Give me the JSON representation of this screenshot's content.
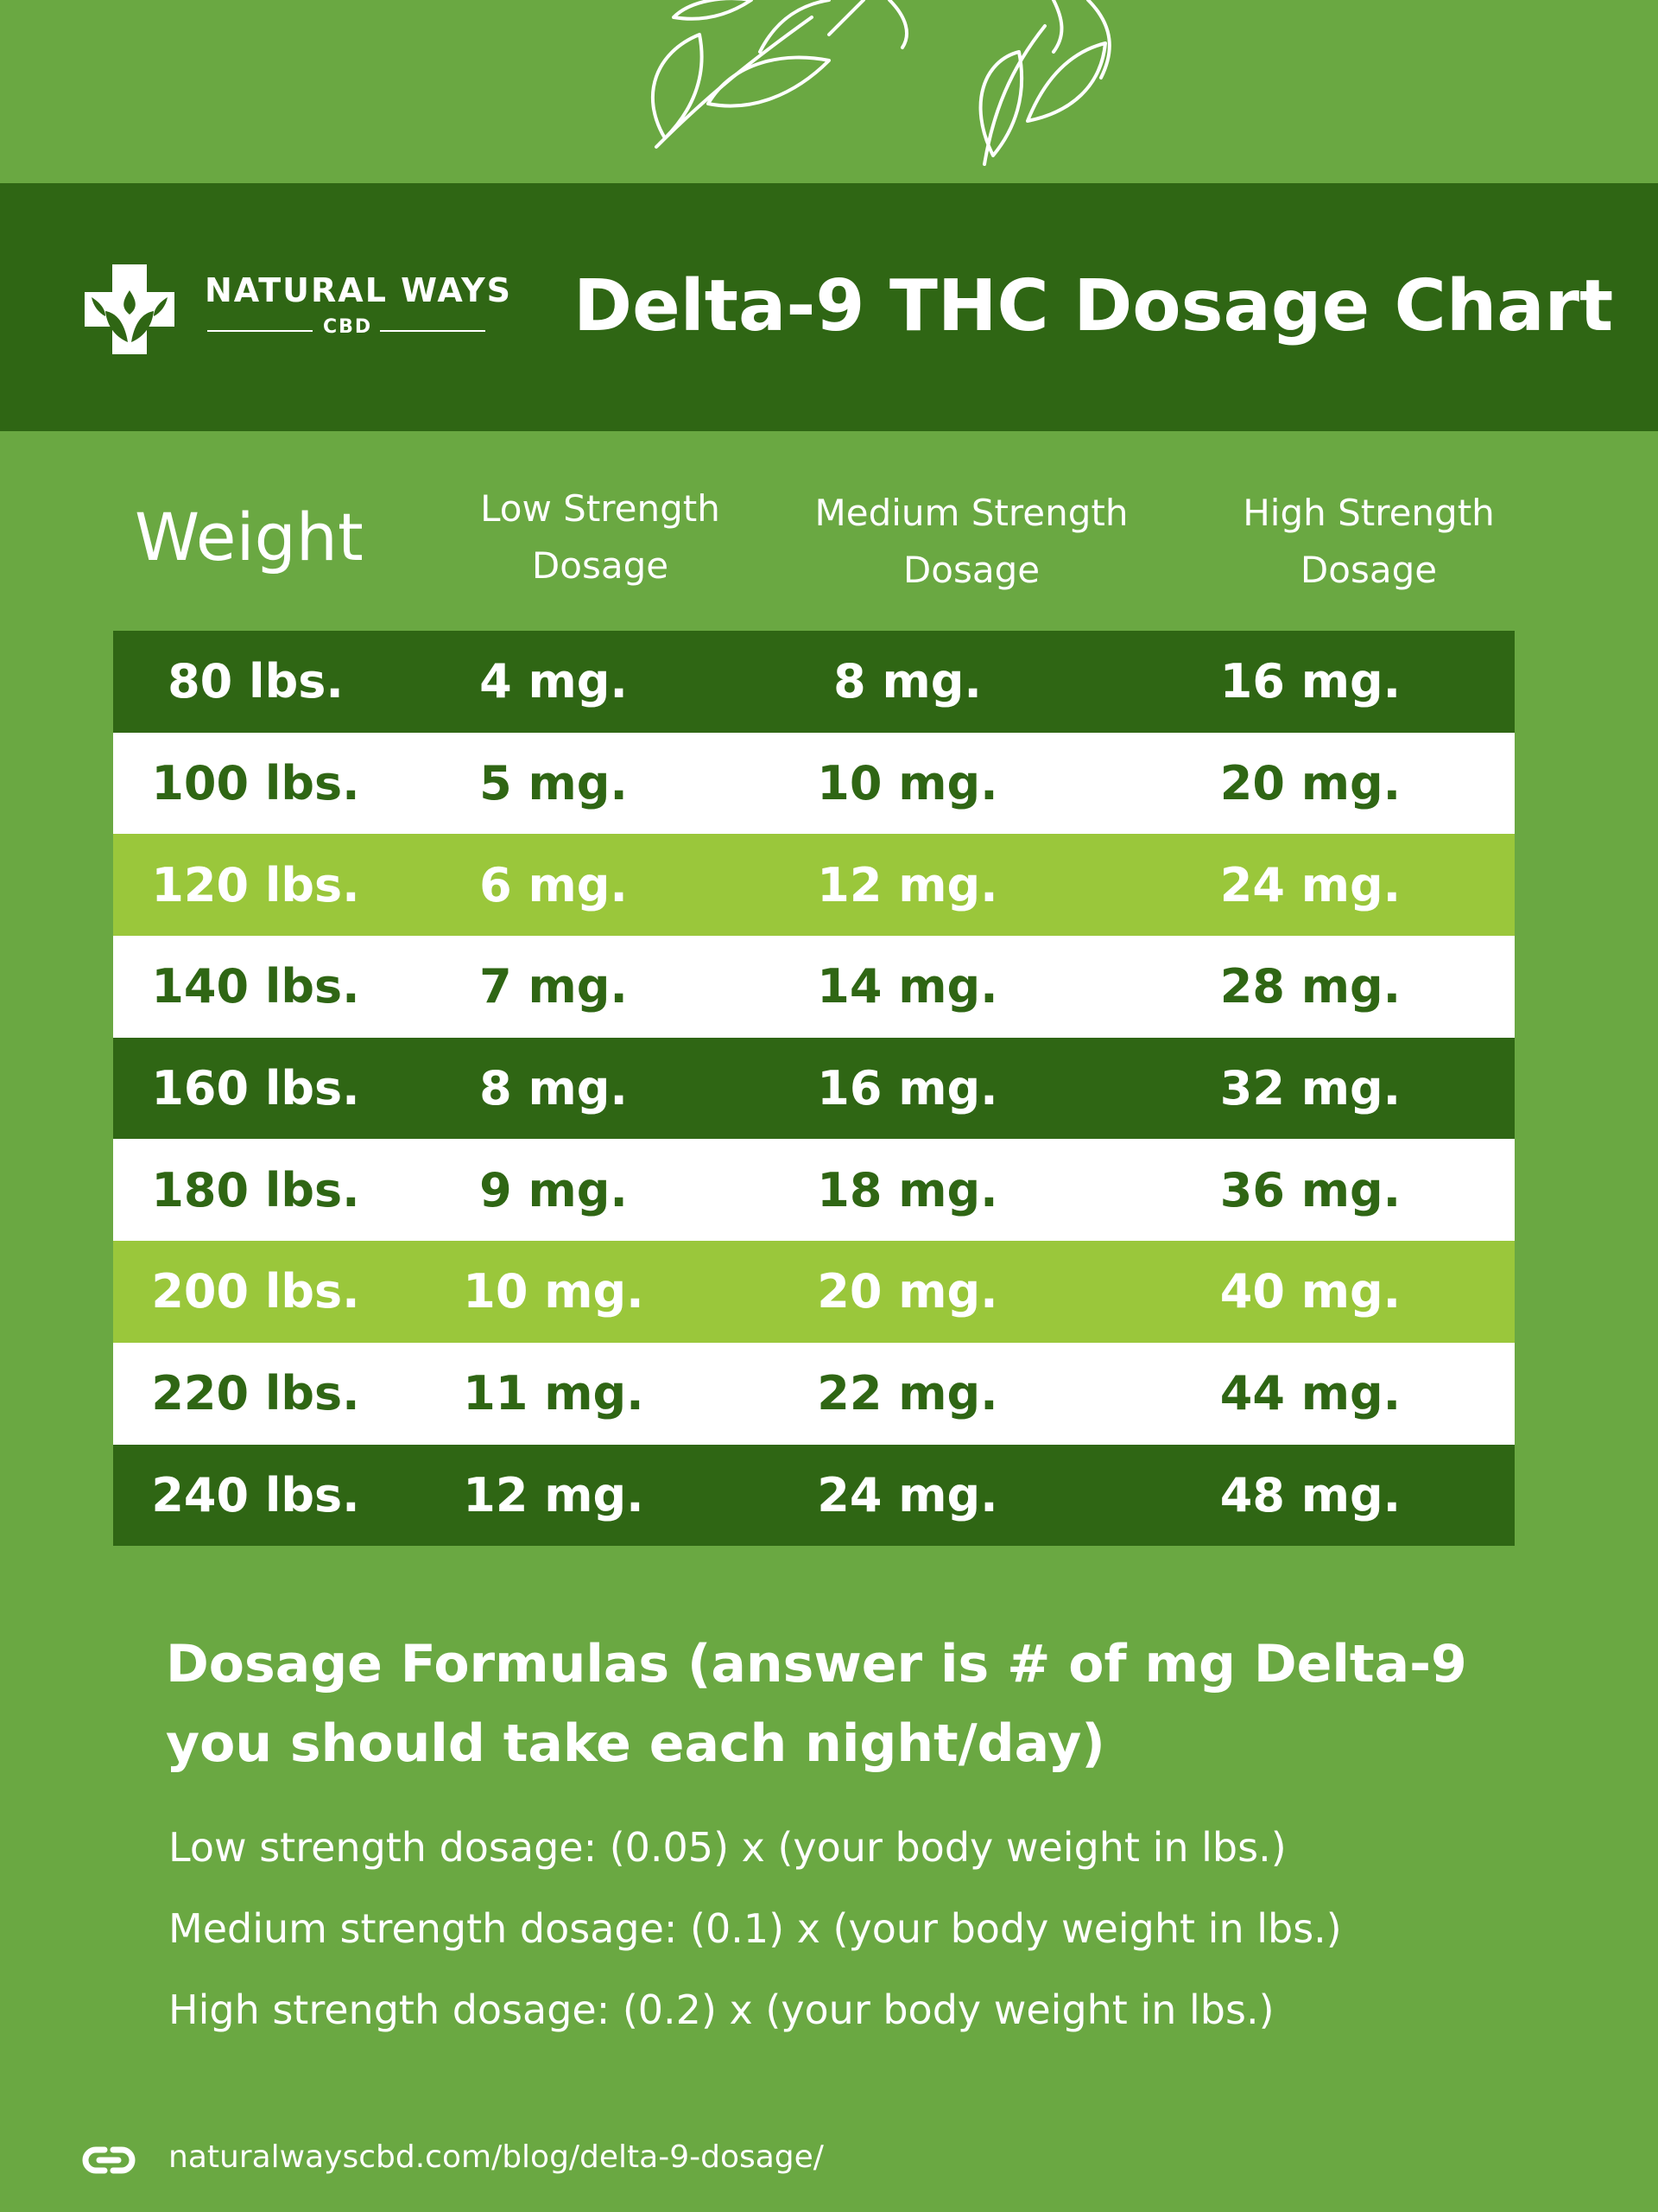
{
  "header": {
    "brand_name": "NATURAL WAYS",
    "brand_sub": "CBD",
    "title": "Delta-9 THC Dosage Chart"
  },
  "chart_data": {
    "type": "table",
    "title": "Delta-9 THC Dosage Chart",
    "columns": [
      "Weight",
      "Low Strength Dosage",
      "Medium Strength Dosage",
      "High Strength Dosage"
    ],
    "column_lines": [
      [
        "Weight"
      ],
      [
        "Low Strength",
        "Dosage"
      ],
      [
        "Medium Strength",
        "Dosage"
      ],
      [
        "High Strength",
        "Dosage"
      ]
    ],
    "rows": [
      [
        "80 lbs.",
        "4 mg.",
        "8 mg.",
        "16 mg."
      ],
      [
        "100 lbs.",
        "5 mg.",
        "10 mg.",
        "20 mg."
      ],
      [
        "120 lbs.",
        "6 mg.",
        "12 mg.",
        "24 mg."
      ],
      [
        "140 lbs.",
        "7 mg.",
        "14 mg.",
        "28 mg."
      ],
      [
        "160 lbs.",
        "8 mg.",
        "16 mg.",
        "32 mg."
      ],
      [
        "180 lbs.",
        "9 mg.",
        "18 mg.",
        "36 mg."
      ],
      [
        "200 lbs.",
        "10 mg.",
        "20 mg.",
        "40 mg."
      ],
      [
        "220 lbs.",
        "11 mg.",
        "22 mg.",
        "44 mg."
      ],
      [
        "240 lbs.",
        "12 mg.",
        "24 mg.",
        "48 mg."
      ]
    ],
    "row_styles": [
      "dark",
      "white",
      "lime",
      "white",
      "dark",
      "white",
      "lime",
      "white",
      "dark"
    ]
  },
  "formulas": {
    "heading": "Dosage Formulas (answer is # of mg Delta-9 you should take each night/day)",
    "items": [
      {
        "label": "Low strength dosage:",
        "expr": "(0.05) x (your body weight in lbs.)"
      },
      {
        "label": "Medium strength dosage:",
        "expr": "(0.1) x (your body weight in lbs.)"
      },
      {
        "label": "High strength dosage:",
        "expr": "(0.2) x (your body weight in lbs.)"
      }
    ]
  },
  "footer": {
    "link": "naturalwayscbd.com/blog/delta-9-dosage/"
  },
  "colors": {
    "background": "#6aa842",
    "dark_green": "#2f6614",
    "lime": "#9ac73b",
    "white": "#ffffff"
  },
  "icons": [
    "leaf-branch-icon",
    "brand-cross-logo-icon",
    "link-icon"
  ]
}
